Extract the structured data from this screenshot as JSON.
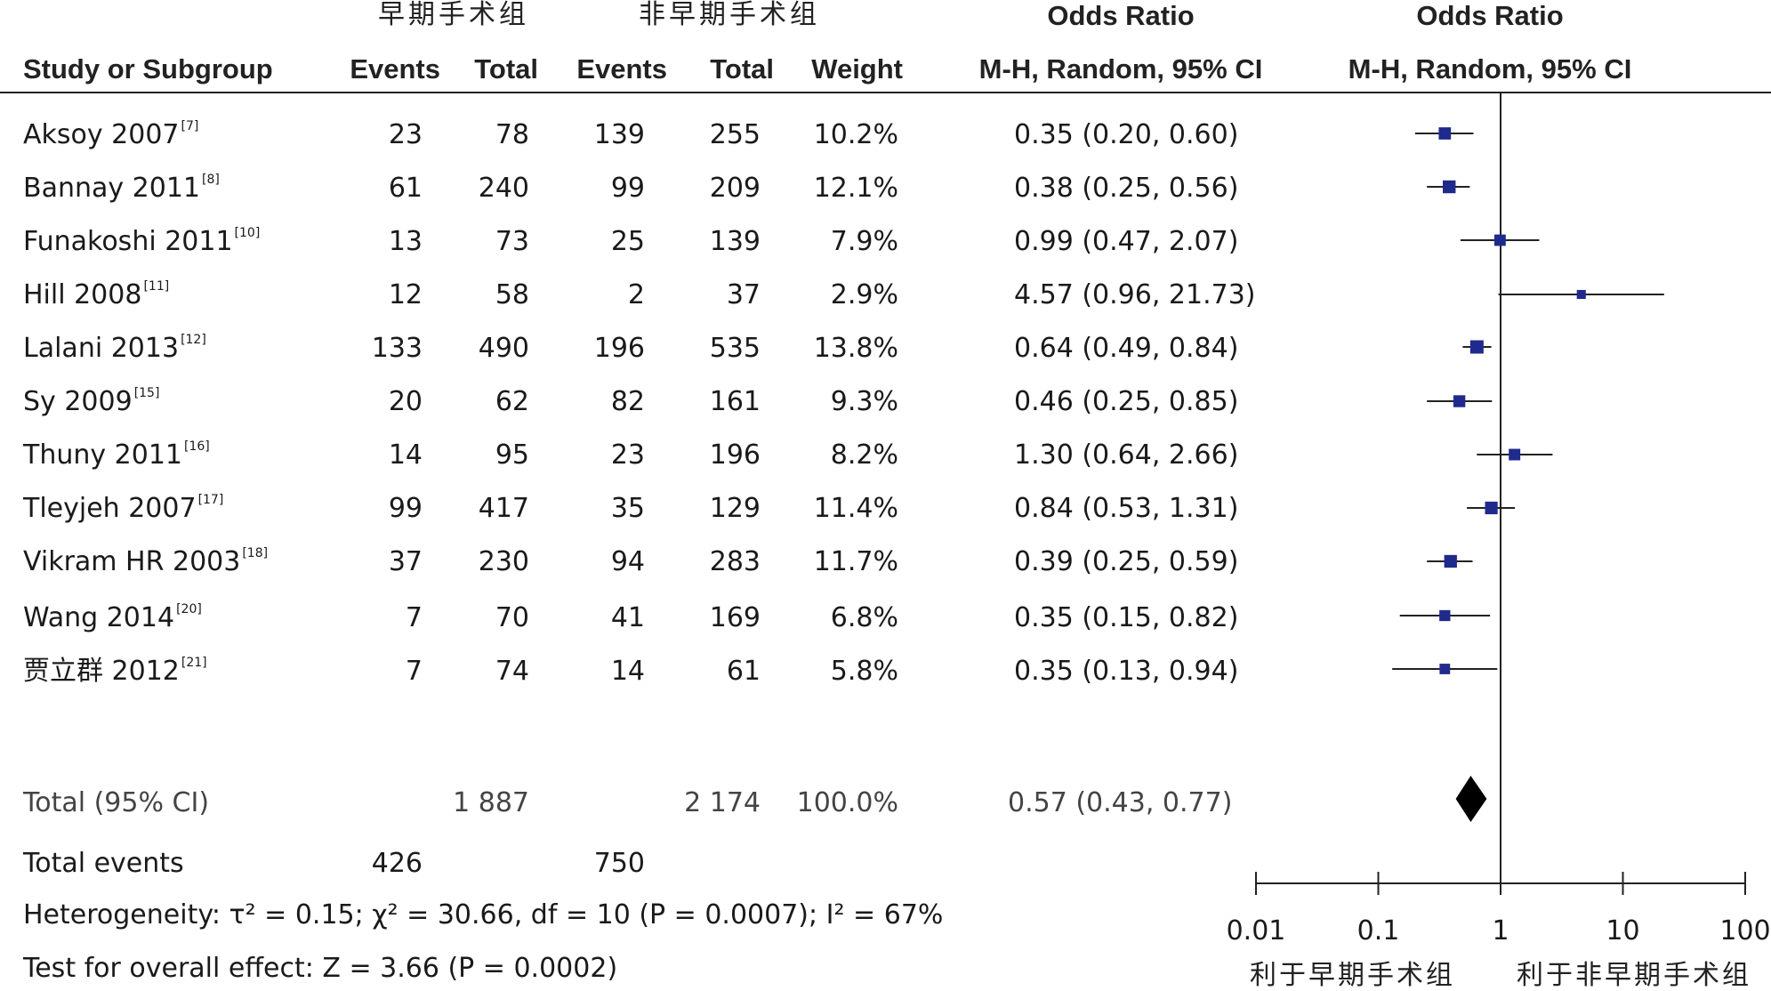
{
  "headers": {
    "group1": "早期手术组",
    "group2": "非早期手术组",
    "odds_ratio_text": "Odds Ratio",
    "odds_ratio_plot": "Odds Ratio",
    "study": "Study or Subgroup",
    "events1": "Events",
    "total1": "Total",
    "events2": "Events",
    "total2": "Total",
    "weight": "Weight",
    "method_text": "M-H, Random, 95% CI",
    "method_plot": "M-H, Random, 95% CI"
  },
  "studies": [
    {
      "name": "Aksoy 2007",
      "ref": "[7]",
      "e1": "23",
      "t1": "78",
      "e2": "139",
      "t2": "255",
      "weight": "10.2%",
      "ci": "0.35 (0.20, 0.60)"
    },
    {
      "name": "Bannay 2011",
      "ref": "[8]",
      "e1": "61",
      "t1": "240",
      "e2": "99",
      "t2": "209",
      "weight": "12.1%",
      "ci": "0.38 (0.25, 0.56)"
    },
    {
      "name": "Funakoshi 2011",
      "ref": "[10]",
      "e1": "13",
      "t1": "73",
      "e2": "25",
      "t2": "139",
      "weight": "7.9%",
      "ci": "0.99 (0.47, 2.07)"
    },
    {
      "name": "Hill 2008",
      "ref": "[11]",
      "e1": "12",
      "t1": "58",
      "e2": "2",
      "t2": "37",
      "weight": "2.9%",
      "ci": "4.57 (0.96, 21.73)"
    },
    {
      "name": "Lalani 2013",
      "ref": "[12]",
      "e1": "133",
      "t1": "490",
      "e2": "196",
      "t2": "535",
      "weight": "13.8%",
      "ci": "0.64 (0.49, 0.84)"
    },
    {
      "name": "Sy 2009",
      "ref": "[15]",
      "e1": "20",
      "t1": "62",
      "e2": "82",
      "t2": "161",
      "weight": "9.3%",
      "ci": "0.46 (0.25, 0.85)"
    },
    {
      "name": "Thuny 2011",
      "ref": "[16]",
      "e1": "14",
      "t1": "95",
      "e2": "23",
      "t2": "196",
      "weight": "8.2%",
      "ci": "1.30 (0.64, 2.66)"
    },
    {
      "name": "Tleyjeh 2007",
      "ref": "[17]",
      "e1": "99",
      "t1": "417",
      "e2": "35",
      "t2": "129",
      "weight": "11.4%",
      "ci": "0.84 (0.53, 1.31)"
    },
    {
      "name": "Vikram HR 2003",
      "ref": "[18]",
      "e1": "37",
      "t1": "230",
      "e2": "94",
      "t2": "283",
      "weight": "11.7%",
      "ci": "0.39 (0.25, 0.59)"
    },
    {
      "name": "Wang 2014",
      "ref": "[20]",
      "e1": "7",
      "t1": "70",
      "e2": "41",
      "t2": "169",
      "weight": "6.8%",
      "ci": "0.35 (0.15, 0.82)"
    },
    {
      "name": "贾立群 2012",
      "ref": "[21]",
      "e1": "7",
      "t1": "74",
      "e2": "14",
      "t2": "61",
      "weight": "5.8%",
      "ci": "0.35 (0.13, 0.94)"
    }
  ],
  "total": {
    "label": "Total (95% CI)",
    "t1": "1 887",
    "t2": "2 174",
    "weight": "100.0%",
    "ci": "0.57 (0.43, 0.77)"
  },
  "total_events": {
    "label": "Total events",
    "e1": "426",
    "e2": "750"
  },
  "heterogeneity": "Heterogeneity: τ² = 0.15; χ² = 30.66, df = 10 (P = 0.0007); I² = 67%",
  "overall_effect": "Test for overall effect: Z = 3.66 (P = 0.0002)",
  "axis": {
    "ticks": [
      "0.01",
      "0.1",
      "1",
      "10",
      "100"
    ],
    "left_label": "利于早期手术组",
    "right_label": "利于非早期手术组"
  },
  "colors": {
    "marker": "#1f2a8c",
    "diamond": "#000000",
    "line": "#222222"
  },
  "chart_data": {
    "type": "forest",
    "scale": "log",
    "xlim": [
      0.01,
      100
    ],
    "reference_line": 1,
    "points": [
      {
        "label": "Aksoy 2007",
        "or": 0.35,
        "lo": 0.2,
        "hi": 0.6,
        "weight": 10.2
      },
      {
        "label": "Bannay 2011",
        "or": 0.38,
        "lo": 0.25,
        "hi": 0.56,
        "weight": 12.1
      },
      {
        "label": "Funakoshi 2011",
        "or": 0.99,
        "lo": 0.47,
        "hi": 2.07,
        "weight": 7.9
      },
      {
        "label": "Hill 2008",
        "or": 4.57,
        "lo": 0.96,
        "hi": 21.73,
        "weight": 2.9
      },
      {
        "label": "Lalani 2013",
        "or": 0.64,
        "lo": 0.49,
        "hi": 0.84,
        "weight": 13.8
      },
      {
        "label": "Sy 2009",
        "or": 0.46,
        "lo": 0.25,
        "hi": 0.85,
        "weight": 9.3
      },
      {
        "label": "Thuny 2011",
        "or": 1.3,
        "lo": 0.64,
        "hi": 2.66,
        "weight": 8.2
      },
      {
        "label": "Tleyjeh 2007",
        "or": 0.84,
        "lo": 0.53,
        "hi": 1.31,
        "weight": 11.4
      },
      {
        "label": "Vikram HR 2003",
        "or": 0.39,
        "lo": 0.25,
        "hi": 0.59,
        "weight": 11.7
      },
      {
        "label": "Wang 2014",
        "or": 0.35,
        "lo": 0.15,
        "hi": 0.82,
        "weight": 6.8
      },
      {
        "label": "贾立群 2012",
        "or": 0.35,
        "lo": 0.13,
        "hi": 0.94,
        "weight": 5.8
      }
    ],
    "pooled": {
      "label": "Total (95% CI)",
      "or": 0.57,
      "lo": 0.43,
      "hi": 0.77
    }
  }
}
